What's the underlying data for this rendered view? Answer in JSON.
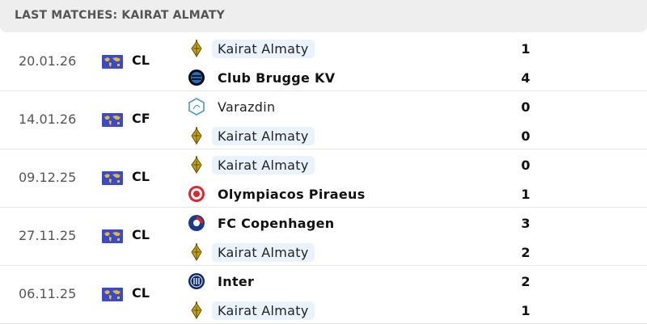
{
  "header": {
    "title": "LAST MATCHES: KAIRAT ALMATY"
  },
  "colors": {
    "highlight": "#eaf3fd",
    "flag": "#3b4bc8",
    "kairat": "#b8960c"
  },
  "matches": [
    {
      "date": "20.01.26",
      "competition": "CL",
      "home": {
        "name": "Kairat Almaty",
        "score": "1",
        "logo": "kairat-logo",
        "highlight": true,
        "winner": false
      },
      "away": {
        "name": "Club Brugge KV",
        "score": "4",
        "logo": "club-brugge-logo",
        "highlight": false,
        "winner": true
      }
    },
    {
      "date": "14.01.26",
      "competition": "CF",
      "home": {
        "name": "Varazdin",
        "score": "0",
        "logo": "varazdin-logo",
        "highlight": false,
        "winner": false
      },
      "away": {
        "name": "Kairat Almaty",
        "score": "0",
        "logo": "kairat-logo",
        "highlight": true,
        "winner": false
      }
    },
    {
      "date": "09.12.25",
      "competition": "CL",
      "home": {
        "name": "Kairat Almaty",
        "score": "0",
        "logo": "kairat-logo",
        "highlight": true,
        "winner": false
      },
      "away": {
        "name": "Olympiacos Piraeus",
        "score": "1",
        "logo": "olympiacos-logo",
        "highlight": false,
        "winner": true
      }
    },
    {
      "date": "27.11.25",
      "competition": "CL",
      "home": {
        "name": "FC Copenhagen",
        "score": "3",
        "logo": "fc-copenhagen-logo",
        "highlight": false,
        "winner": true
      },
      "away": {
        "name": "Kairat Almaty",
        "score": "2",
        "logo": "kairat-logo",
        "highlight": true,
        "winner": false
      }
    },
    {
      "date": "06.11.25",
      "competition": "CL",
      "home": {
        "name": "Inter",
        "score": "2",
        "logo": "inter-logo",
        "highlight": false,
        "winner": true
      },
      "away": {
        "name": "Kairat Almaty",
        "score": "1",
        "logo": "kairat-logo",
        "highlight": true,
        "winner": false
      }
    }
  ]
}
